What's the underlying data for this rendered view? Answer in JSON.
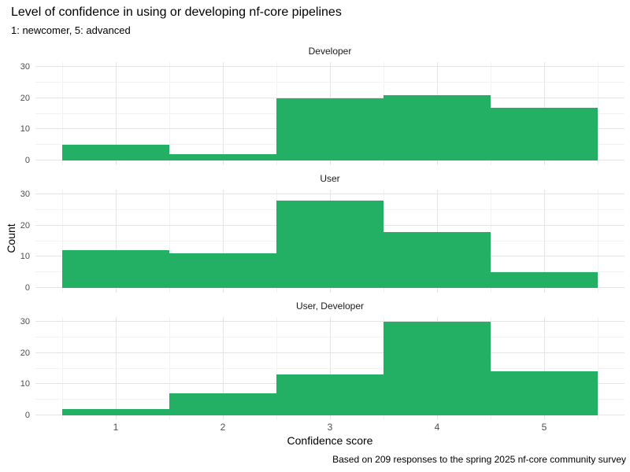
{
  "colors": {
    "bar": "#24B064",
    "grid_major": "#E4E4E4",
    "grid_minor": "#F2F2F2",
    "tick_label": "#4d4d4d",
    "strip_label": "#1a1a1a",
    "background": "#ffffff"
  },
  "chart_data": {
    "type": "bar",
    "subtype": "faceted-histogram",
    "title": "Level of confidence in using or developing nf-core pipelines",
    "subtitle": "1: newcomer, 5: advanced",
    "caption": "Based on 209 responses to the spring 2025 nf-core community survey",
    "xlabel": "Confidence score",
    "ylabel": "Count",
    "categories": [
      1,
      2,
      3,
      4,
      5
    ],
    "x_tick_labels": [
      "1",
      "2",
      "3",
      "4",
      "5"
    ],
    "facets": [
      {
        "label": "Developer",
        "values": [
          5,
          2,
          20,
          21,
          17
        ]
      },
      {
        "label": "User",
        "values": [
          12,
          11,
          28,
          18,
          5
        ]
      },
      {
        "label": "User, Developer",
        "values": [
          2,
          7,
          13,
          30,
          14
        ]
      }
    ],
    "ylim": [
      0,
      30
    ],
    "xlim": [
      0.25,
      5.75
    ],
    "y_major_breaks": [
      0,
      10,
      20,
      30
    ],
    "y_minor_breaks": [
      5,
      15,
      25
    ],
    "x_minor_breaks": [
      0.5,
      1.5,
      2.5,
      3.5,
      4.5,
      5.5
    ],
    "bin_edges": [
      0.5,
      1.5,
      2.5,
      3.5,
      4.5,
      5.5
    ],
    "grid": true,
    "legend": "none",
    "facet_layout": "rows"
  }
}
